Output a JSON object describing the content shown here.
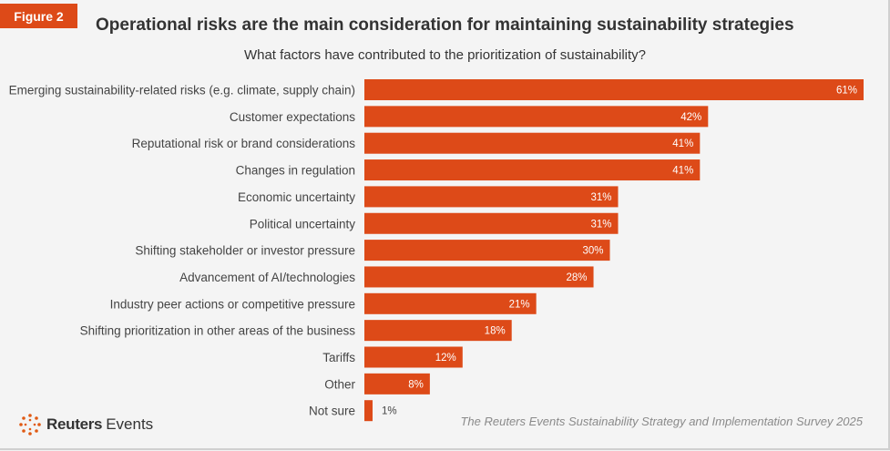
{
  "badge": "Figure 2",
  "title": "Operational risks are the main consideration for maintaining sustainability strategies",
  "subtitle": "What factors have contributed to the prioritization of sustainability?",
  "logo": {
    "word1": "Reuters",
    "word2": "Events",
    "icon": "reuters-dot-ring-icon"
  },
  "source": "The Reuters Events Sustainability Strategy and Implementation Survey 2025",
  "colors": {
    "bar": "#dd4a18",
    "accent": "#dd4a18",
    "background": "#f4f4f4"
  },
  "chart_data": {
    "type": "bar",
    "orientation": "horizontal",
    "title": "Operational risks are the main consideration for maintaining sustainability strategies",
    "subtitle": "What factors have contributed to the prioritization of sustainability?",
    "categories": [
      "Emerging sustainability-related risks (e.g. climate, supply chain)",
      "Customer expectations",
      "Reputational risk or brand considerations",
      "Changes in regulation",
      "Economic uncertainty",
      "Political uncertainty",
      "Shifting stakeholder or investor pressure",
      "Advancement of AI/technologies",
      "Industry peer actions or competitive pressure",
      "Shifting prioritization in other areas of the business",
      "Tariffs",
      "Other",
      "Not sure"
    ],
    "values": [
      61,
      42,
      41,
      41,
      31,
      31,
      30,
      28,
      21,
      18,
      12,
      8,
      1
    ],
    "labels": [
      "61%",
      "42%",
      "41%",
      "41%",
      "31%",
      "31%",
      "30%",
      "28%",
      "21%",
      "18%",
      "12%",
      "8%",
      "1%"
    ],
    "unit": "%",
    "xlim": [
      0,
      61
    ],
    "grid": false,
    "legend": "none"
  }
}
